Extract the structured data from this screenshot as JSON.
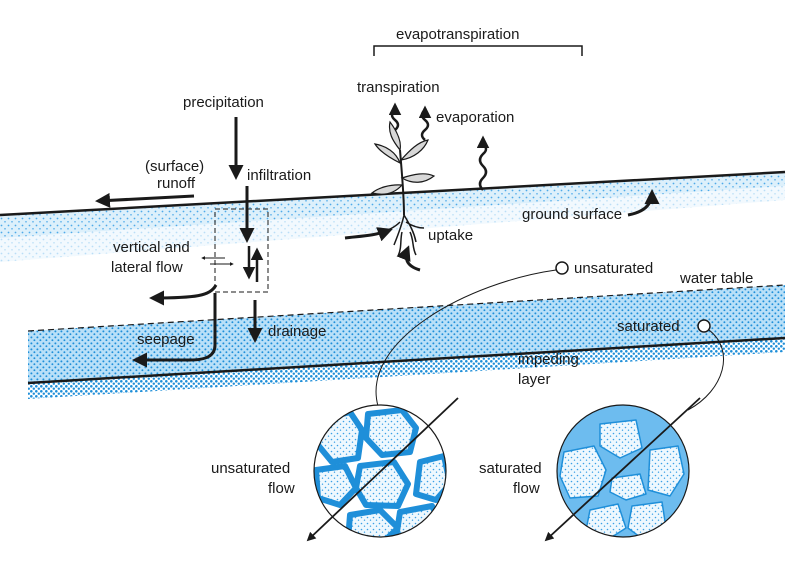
{
  "labels": {
    "evapotranspiration": "evapotranspiration",
    "transpiration": "transpiration",
    "evaporation": "evaporation",
    "precipitation": "precipitation",
    "infiltration": "infiltration",
    "surface_runoff_1": "(surface)",
    "surface_runoff_2": "runoff",
    "ground_surface": "ground surface",
    "uptake": "uptake",
    "vertical_lateral_1": "vertical and",
    "vertical_lateral_2": "lateral flow",
    "unsaturated": "unsaturated",
    "water_table": "water table",
    "saturated": "saturated",
    "seepage": "seepage",
    "drainage": "drainage",
    "impeding_1": "impeding",
    "impeding_2": "layer",
    "unsat_flow_1": "unsaturated",
    "unsat_flow_2": "flow",
    "sat_flow_1": "saturated",
    "sat_flow_2": "flow"
  },
  "colors": {
    "water": "#3aa0e6",
    "water_light": "#a9d8f5",
    "water_fill": "#6dbcef",
    "ink": "#1a1a1a",
    "grain_fill": "#e6f4fd"
  }
}
